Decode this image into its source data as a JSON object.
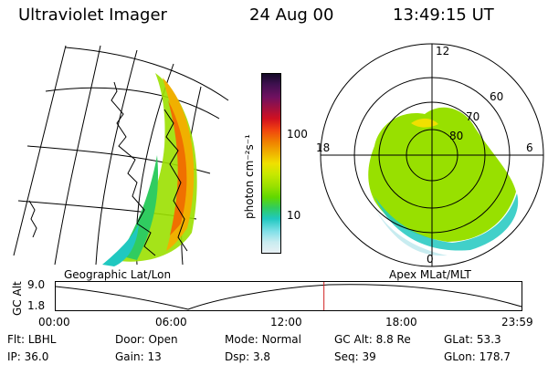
{
  "header": {
    "instrument": "Ultraviolet Imager",
    "date": "24 Aug 00",
    "time": "13:49:15 UT"
  },
  "colorbar": {
    "unit_label": "photon cm⁻²s⁻¹",
    "ticks": [
      "100",
      "10"
    ],
    "colors": [
      "#140a28",
      "#401050",
      "#701060",
      "#a01040",
      "#d01020",
      "#f04010",
      "#f08000",
      "#f0b000",
      "#f0e000",
      "#c8e800",
      "#98e000",
      "#60d800",
      "#30cc60",
      "#20c8c0",
      "#80e0e8",
      "#c8ecf0",
      "#e8f0f4"
    ]
  },
  "left_map": {
    "caption": "Geographic Lat/Lon"
  },
  "polar_plot": {
    "caption": "Apex MLat/MLT",
    "mlt_labels": {
      "top": "12",
      "right": "6",
      "bottom": "0",
      "left": "18"
    },
    "lat_labels": [
      "60",
      "70",
      "80"
    ]
  },
  "timeline": {
    "y_axis_title": "GC Alt",
    "y_ticks": [
      "9.0",
      "1.8"
    ],
    "x_ticks": [
      "00:00",
      "06:00",
      "12:00",
      "18:00",
      "23:59"
    ],
    "marker_color": "#d02020",
    "current_hour": 13.82
  },
  "footer": {
    "row1": [
      {
        "k": "Flt:",
        "v": "LBHL"
      },
      {
        "k": "Door:",
        "v": "Open"
      },
      {
        "k": "Mode:",
        "v": "Normal"
      },
      {
        "k": "GC Alt:",
        "v": "8.8 Re"
      },
      {
        "k": "GLat:",
        "v": "53.3"
      }
    ],
    "row2": [
      {
        "k": "IP:",
        "v": "36.0"
      },
      {
        "k": "Gain:",
        "v": "13"
      },
      {
        "k": "Dsp:",
        "v": "3.8"
      },
      {
        "k": "Seq:",
        "v": "39"
      },
      {
        "k": "GLon:",
        "v": "178.7"
      }
    ]
  }
}
